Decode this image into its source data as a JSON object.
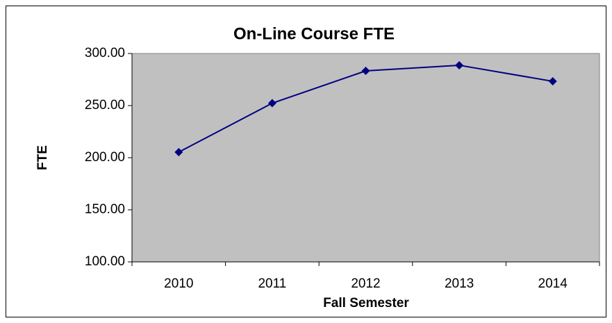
{
  "chart_data": {
    "type": "line",
    "title": "On-Line Course FTE",
    "x_label": "Fall Semester",
    "y_label": "FTE",
    "categories": [
      "2010",
      "2011",
      "2012",
      "2013",
      "2014"
    ],
    "series": [
      {
        "name": "FTE",
        "color": "#000080",
        "values": [
          205.3,
          252.3,
          283.3,
          288.7,
          273.3
        ]
      }
    ],
    "ylim": [
      100,
      300
    ],
    "yticks": [
      {
        "value": 100,
        "label": "100.00"
      },
      {
        "value": 150,
        "label": "150.00"
      },
      {
        "value": 200,
        "label": "200.00"
      },
      {
        "value": 250,
        "label": "250.00"
      },
      {
        "value": 300,
        "label": "300.00"
      }
    ],
    "plot_background": "#c0c0c0",
    "legend": false
  }
}
